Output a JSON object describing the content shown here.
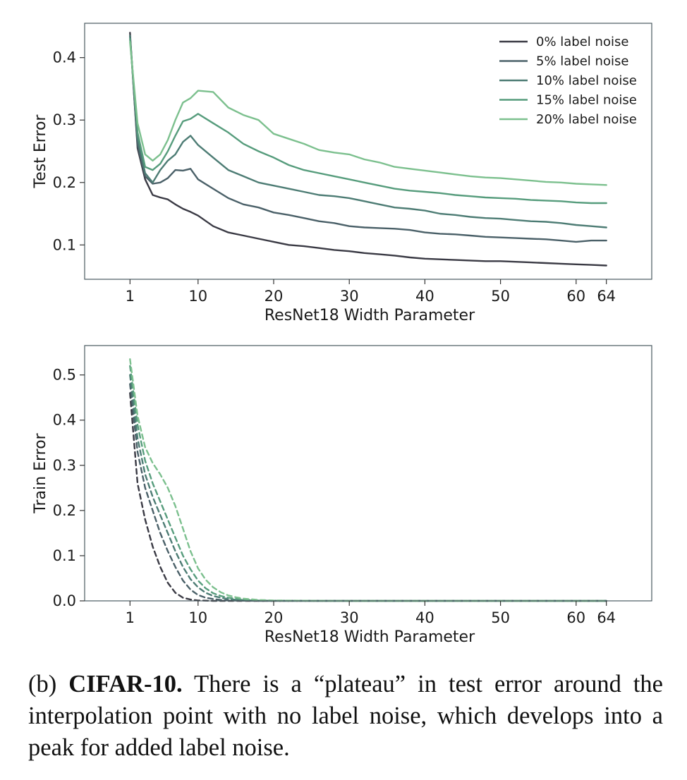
{
  "chart_data": [
    {
      "type": "line",
      "xlabel": "ResNet18 Width Parameter",
      "ylabel": "Test Error",
      "xlim": [
        -5,
        70
      ],
      "ylim": [
        0.045,
        0.455
      ],
      "xticks": [
        1,
        10,
        20,
        30,
        40,
        50,
        60,
        64
      ],
      "yticks": [
        0.1,
        0.2,
        0.3,
        0.4
      ],
      "ytick_labels": [
        "0.1",
        "0.2",
        "0.3",
        "0.4"
      ],
      "legend_position": "top-right",
      "grid": false,
      "line_style": "solid",
      "x": [
        1,
        2,
        3,
        4,
        5,
        6,
        7,
        8,
        9,
        10,
        12,
        14,
        16,
        18,
        20,
        22,
        24,
        26,
        28,
        30,
        32,
        34,
        36,
        38,
        40,
        42,
        44,
        46,
        48,
        50,
        52,
        54,
        56,
        58,
        60,
        62,
        64
      ],
      "series": [
        {
          "name": "0% label noise",
          "color": "#3a3a44",
          "values": [
            0.44,
            0.255,
            0.205,
            0.18,
            0.176,
            0.173,
            0.165,
            0.158,
            0.153,
            0.147,
            0.13,
            0.12,
            0.115,
            0.11,
            0.105,
            0.1,
            0.098,
            0.095,
            0.092,
            0.09,
            0.087,
            0.085,
            0.083,
            0.08,
            0.078,
            0.077,
            0.076,
            0.075,
            0.074,
            0.074,
            0.073,
            0.072,
            0.071,
            0.07,
            0.069,
            0.068,
            0.067
          ]
        },
        {
          "name": "5% label noise",
          "color": "#4a6068",
          "values": [
            0.435,
            0.26,
            0.21,
            0.198,
            0.2,
            0.207,
            0.22,
            0.219,
            0.222,
            0.205,
            0.19,
            0.175,
            0.165,
            0.16,
            0.152,
            0.148,
            0.143,
            0.138,
            0.135,
            0.13,
            0.128,
            0.127,
            0.126,
            0.124,
            0.12,
            0.118,
            0.117,
            0.115,
            0.113,
            0.112,
            0.111,
            0.11,
            0.109,
            0.107,
            0.105,
            0.107,
            0.107
          ]
        },
        {
          "name": "10% label noise",
          "color": "#4d7c74",
          "values": [
            0.435,
            0.27,
            0.215,
            0.2,
            0.22,
            0.235,
            0.245,
            0.265,
            0.275,
            0.26,
            0.24,
            0.22,
            0.21,
            0.2,
            0.195,
            0.19,
            0.185,
            0.18,
            0.178,
            0.175,
            0.17,
            0.165,
            0.16,
            0.158,
            0.155,
            0.15,
            0.148,
            0.145,
            0.143,
            0.142,
            0.14,
            0.138,
            0.137,
            0.135,
            0.132,
            0.13,
            0.128
          ]
        },
        {
          "name": "15% label noise",
          "color": "#569c7c",
          "values": [
            0.43,
            0.28,
            0.225,
            0.22,
            0.23,
            0.25,
            0.275,
            0.298,
            0.302,
            0.31,
            0.295,
            0.28,
            0.262,
            0.25,
            0.24,
            0.228,
            0.22,
            0.215,
            0.21,
            0.205,
            0.2,
            0.195,
            0.19,
            0.187,
            0.185,
            0.183,
            0.18,
            0.178,
            0.176,
            0.175,
            0.174,
            0.172,
            0.171,
            0.17,
            0.168,
            0.167,
            0.167
          ]
        },
        {
          "name": "20% label noise",
          "color": "#7cc08e",
          "values": [
            0.425,
            0.295,
            0.245,
            0.235,
            0.245,
            0.268,
            0.3,
            0.328,
            0.335,
            0.347,
            0.345,
            0.32,
            0.308,
            0.3,
            0.278,
            0.27,
            0.262,
            0.252,
            0.248,
            0.245,
            0.237,
            0.232,
            0.225,
            0.222,
            0.219,
            0.216,
            0.213,
            0.21,
            0.208,
            0.207,
            0.205,
            0.203,
            0.201,
            0.2,
            0.198,
            0.197,
            0.196
          ]
        }
      ]
    },
    {
      "type": "line",
      "xlabel": "ResNet18 Width Parameter",
      "ylabel": "Train Error",
      "xlim": [
        -5,
        70
      ],
      "ylim": [
        0.0,
        0.565
      ],
      "xticks": [
        1,
        10,
        20,
        30,
        40,
        50,
        60,
        64
      ],
      "yticks": [
        0.0,
        0.1,
        0.2,
        0.3,
        0.4,
        0.5
      ],
      "ytick_labels": [
        "0.0",
        "0.1",
        "0.2",
        "0.3",
        "0.4",
        "0.5"
      ],
      "grid": false,
      "line_style": "dashed",
      "x": [
        1,
        2,
        3,
        4,
        5,
        6,
        7,
        8,
        9,
        10,
        11,
        12,
        13,
        14,
        15,
        16,
        18,
        20,
        25,
        30,
        40,
        50,
        64
      ],
      "series": [
        {
          "name": "0% label noise",
          "color": "#3a3a44",
          "values": [
            0.46,
            0.26,
            0.18,
            0.12,
            0.075,
            0.04,
            0.018,
            0.007,
            0.003,
            0.001,
            0.0005,
            0.0,
            0.0,
            0.0,
            0.0,
            0.0,
            0.0,
            0.0,
            0.0,
            0.0,
            0.0,
            0.0,
            0.0
          ]
        },
        {
          "name": "5% label noise",
          "color": "#4a6068",
          "values": [
            0.48,
            0.33,
            0.25,
            0.2,
            0.15,
            0.11,
            0.075,
            0.045,
            0.025,
            0.013,
            0.007,
            0.004,
            0.002,
            0.001,
            0.0006,
            0.0003,
            0.0,
            0.0,
            0.0,
            0.0,
            0.0,
            0.0,
            0.0
          ]
        },
        {
          "name": "10% label noise",
          "color": "#4d7c74",
          "values": [
            0.5,
            0.36,
            0.28,
            0.23,
            0.19,
            0.15,
            0.11,
            0.075,
            0.048,
            0.03,
            0.018,
            0.011,
            0.007,
            0.004,
            0.0025,
            0.0015,
            0.0006,
            0.0003,
            0.0,
            0.0,
            0.0,
            0.0,
            0.0
          ]
        },
        {
          "name": "15% label noise",
          "color": "#569c7c",
          "values": [
            0.52,
            0.39,
            0.31,
            0.26,
            0.22,
            0.18,
            0.14,
            0.1,
            0.07,
            0.045,
            0.028,
            0.017,
            0.011,
            0.007,
            0.0045,
            0.003,
            0.0012,
            0.0005,
            0.0001,
            0.0,
            0.0,
            0.0,
            0.0
          ]
        },
        {
          "name": "20% label noise",
          "color": "#7cc08e",
          "values": [
            0.535,
            0.41,
            0.34,
            0.305,
            0.28,
            0.25,
            0.21,
            0.16,
            0.11,
            0.072,
            0.047,
            0.03,
            0.019,
            0.012,
            0.008,
            0.005,
            0.002,
            0.001,
            0.0003,
            0.0,
            0.0,
            0.0,
            0.0
          ]
        }
      ]
    }
  ],
  "caption": {
    "label": "(b)",
    "dataset": "CIFAR-10.",
    "text": "There is a “plateau” in test error around the interpolation point with no label noise, which develops into a peak for added label noise."
  }
}
